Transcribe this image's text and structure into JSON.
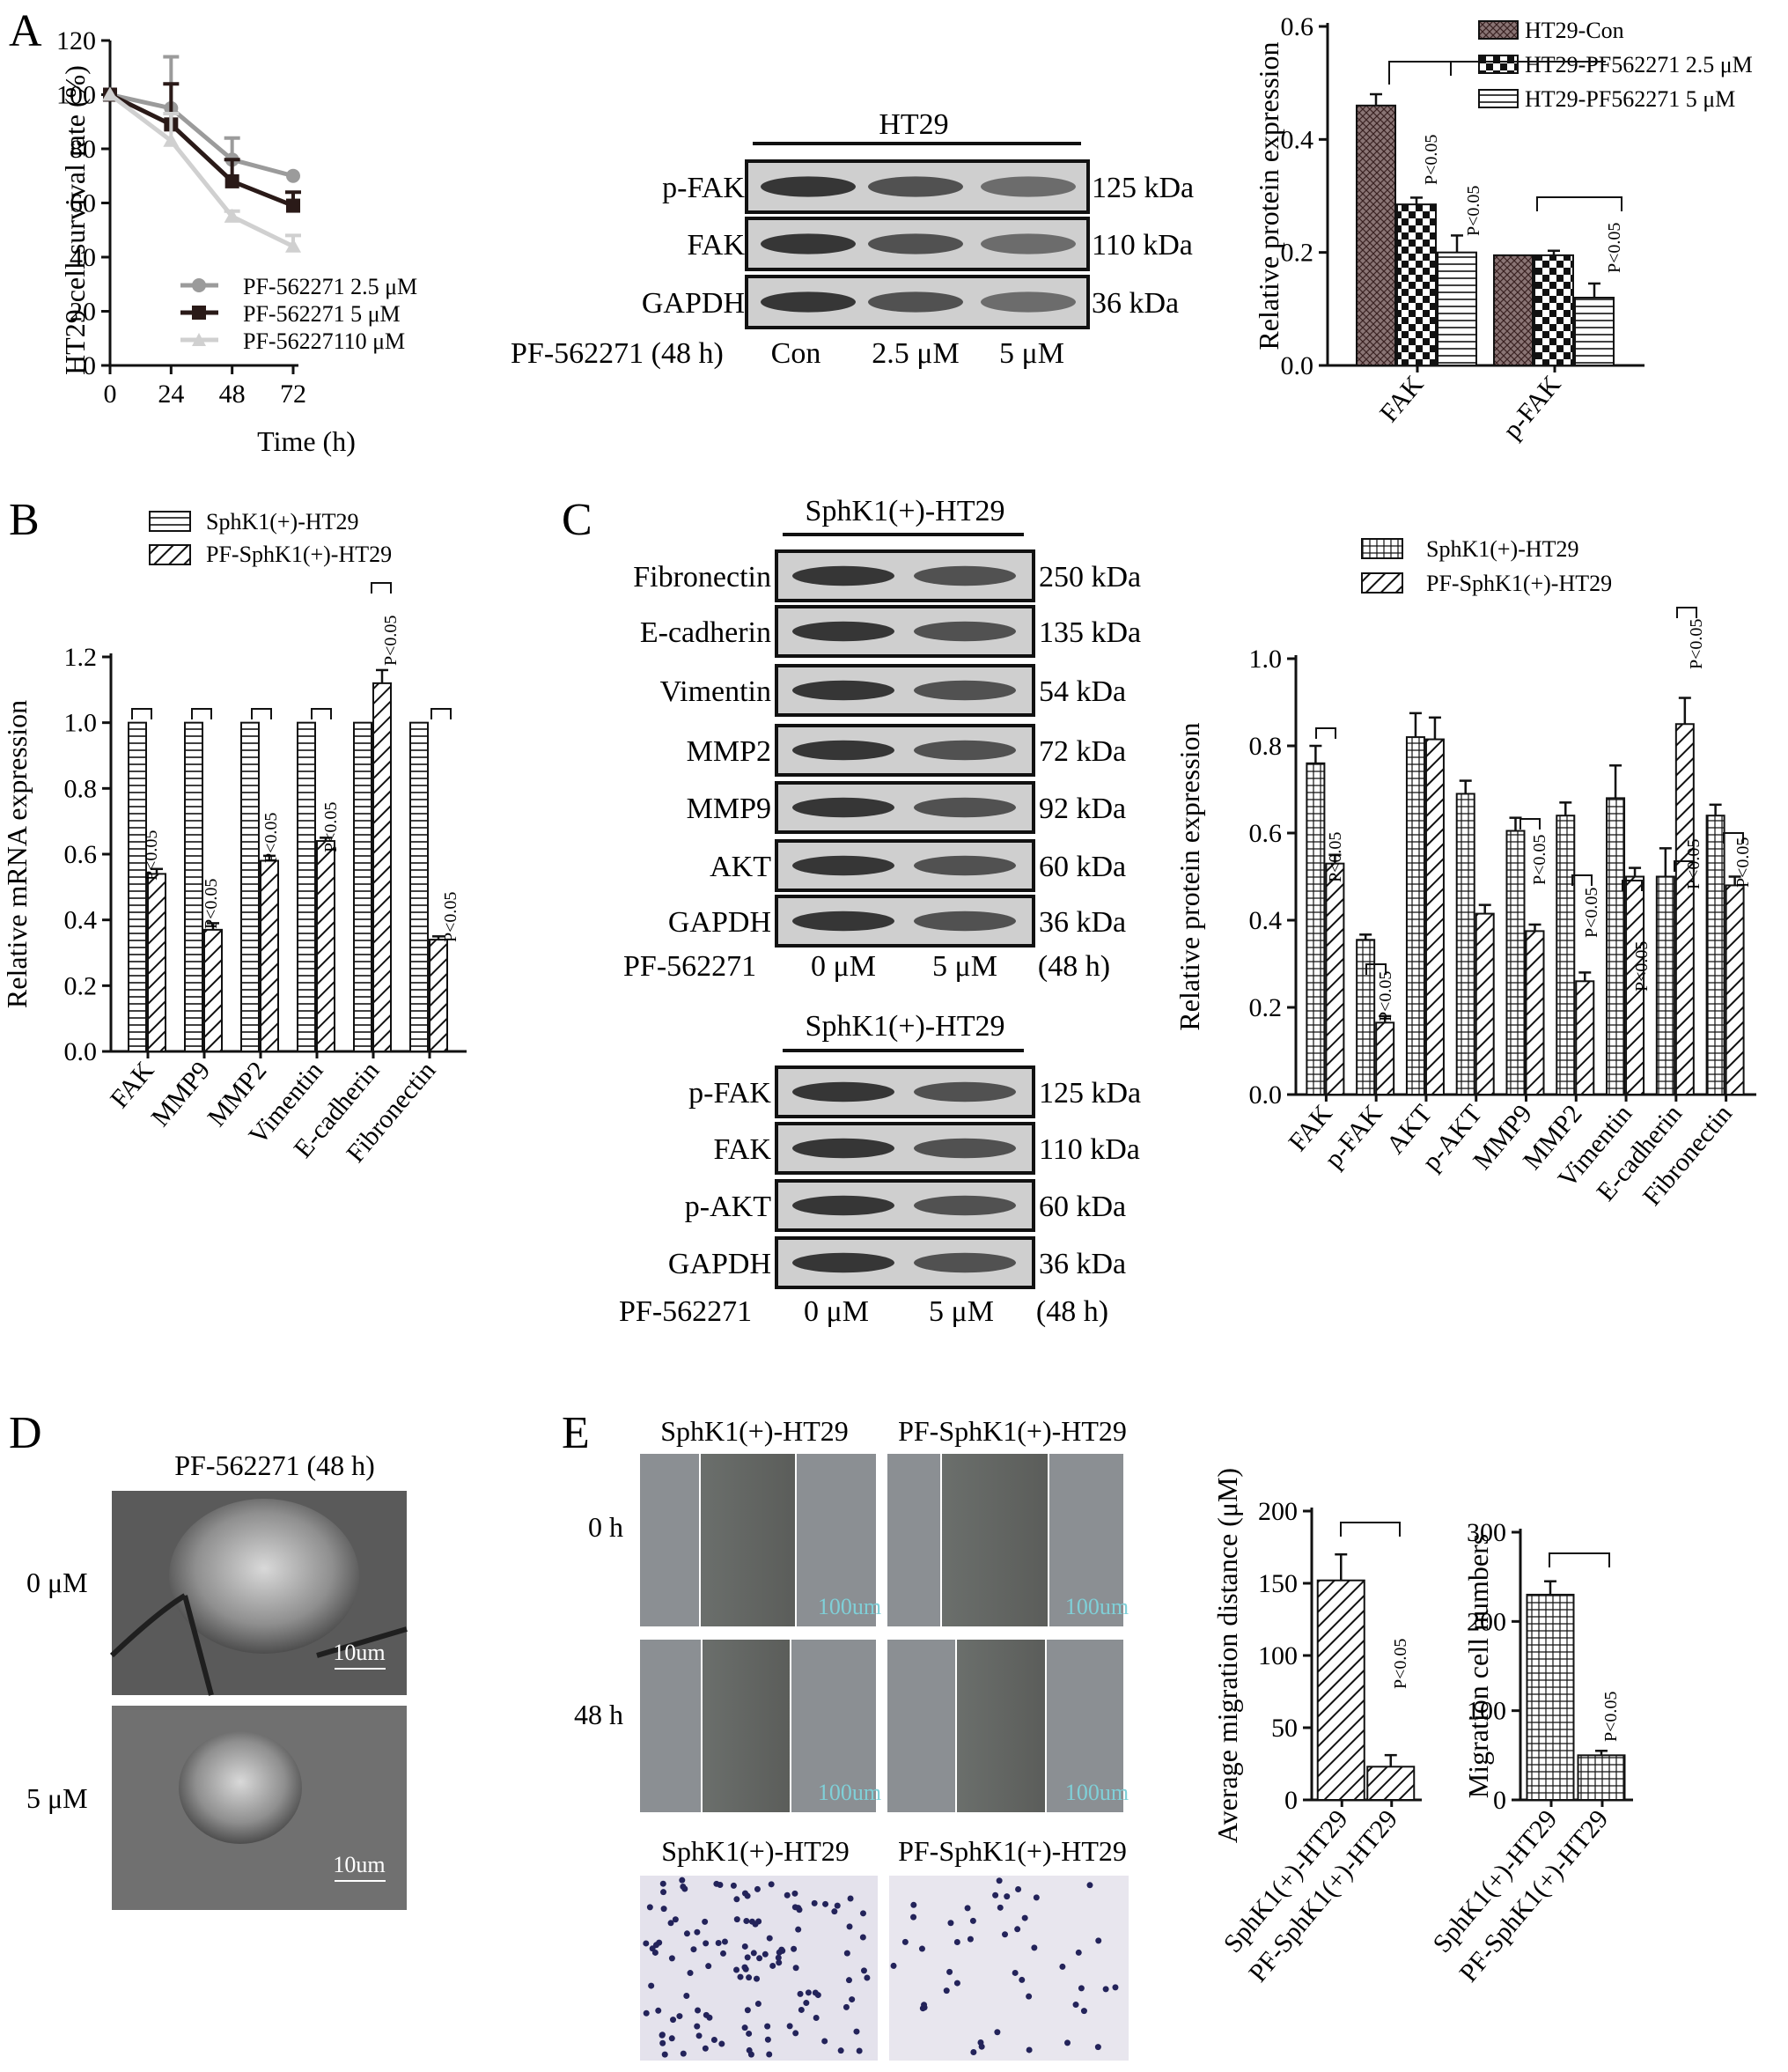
{
  "panels": {
    "A": "A",
    "B": "B",
    "C": "C",
    "D": "D",
    "E": "E"
  },
  "colors": {
    "black": "#111111",
    "dark": "#2a1a18",
    "grey": "#9b9b9b",
    "light": "#d0d0d0",
    "blotbg": "#c9c9c9"
  },
  "chart_data": [
    {
      "id": "A-line",
      "type": "line",
      "ylabel": "HT29 cell survival rate (%)",
      "xlabel": "Time (h)",
      "x": [
        0,
        24,
        48,
        72
      ],
      "xlim": [
        0,
        72
      ],
      "ylim": [
        0,
        120
      ],
      "yticks": [
        0,
        20,
        40,
        60,
        80,
        100,
        120
      ],
      "series": [
        {
          "name": "PF-562271 2.5 μM",
          "values": [
            100,
            95,
            76,
            70
          ],
          "errors": [
            0,
            19,
            8,
            0
          ],
          "color": "#9b9b9b",
          "marker": "circle"
        },
        {
          "name": "PF-562271 5 μM",
          "values": [
            100,
            89,
            68,
            59
          ],
          "errors": [
            0,
            15,
            8,
            5
          ],
          "color": "#2a1a18",
          "marker": "square"
        },
        {
          "name": "PF-56227110 μM",
          "values": [
            100,
            83,
            55,
            44
          ],
          "errors": [
            0,
            10,
            2,
            4
          ],
          "color": "#d0d0d0",
          "marker": "triangle"
        }
      ]
    },
    {
      "id": "A-bar",
      "type": "bar",
      "ylabel": "Relative protein expression",
      "categories": [
        "FAK",
        "p-FAK"
      ],
      "ylim": [
        0,
        0.6
      ],
      "yticks": [
        "0.0",
        "0.2",
        "0.4",
        "0.6"
      ],
      "series": [
        {
          "name": "HT29-Con",
          "values": [
            0.46,
            0.195
          ],
          "errors": [
            0.02,
            0
          ]
        },
        {
          "name": "HT29-PF562271 2.5 μM",
          "values": [
            0.285,
            0.195
          ],
          "errors": [
            0.012,
            0.008
          ]
        },
        {
          "name": "HT29-PF562271 5 μM",
          "values": [
            0.2,
            0.12
          ],
          "errors": [
            0.03,
            0.025
          ]
        }
      ],
      "annotations": [
        "P<0.05",
        "P<0.05",
        "P<0.05"
      ]
    },
    {
      "id": "B-bar",
      "type": "bar",
      "ylabel": "Relative  mRNA expression",
      "categories": [
        "FAK",
        "MMP9",
        "MMP2",
        "Vimentin",
        "E-cadherin",
        "Fibronectin"
      ],
      "ylim": [
        0,
        1.2
      ],
      "yticks": [
        "0.0",
        "0.2",
        "0.4",
        "0.6",
        "0.8",
        "1.0",
        "1.2"
      ],
      "series": [
        {
          "name": "SphK1(+)-HT29",
          "values": [
            1.0,
            1.0,
            1.0,
            1.0,
            1.0,
            1.0
          ],
          "errors": [
            0,
            0,
            0,
            0,
            0,
            0
          ]
        },
        {
          "name": "PF-SphK1(+)-HT29",
          "values": [
            0.54,
            0.37,
            0.58,
            0.64,
            1.12,
            0.34
          ],
          "errors": [
            0.015,
            0.02,
            0.015,
            0.01,
            0.04,
            0.01
          ]
        }
      ],
      "annotations": [
        "P<0.05",
        "P<0.05",
        "P<0.05",
        "P<0.05",
        "P<0.05",
        "P<0.05"
      ]
    },
    {
      "id": "C-bar",
      "type": "bar",
      "ylabel": "Relative protein expression",
      "categories": [
        "FAK",
        "p-FAK",
        "AKT",
        "p-AKT",
        "MMP9",
        "MMP2",
        "Vimentin",
        "E-cadherin",
        "Fibronectin"
      ],
      "ylim": [
        0,
        1.0
      ],
      "yticks": [
        "0.0",
        "0.2",
        "0.4",
        "0.6",
        "0.8",
        "1.0"
      ],
      "series": [
        {
          "name": "SphK1(+)-HT29",
          "values": [
            0.76,
            0.355,
            0.82,
            0.69,
            0.605,
            0.64,
            0.68,
            0.5,
            0.64
          ],
          "errors": [
            0.04,
            0.012,
            0.055,
            0.03,
            0.03,
            0.03,
            0.075,
            0.065,
            0.025
          ]
        },
        {
          "name": "PF-SphK1(+)-HT29",
          "values": [
            0.53,
            0.165,
            0.815,
            0.415,
            0.375,
            0.26,
            0.5,
            0.85,
            0.48
          ],
          "errors": [
            0.02,
            0.015,
            0.05,
            0.02,
            0.015,
            0.02,
            0.02,
            0.06,
            0.02
          ]
        }
      ],
      "annotations": [
        "P<0.05",
        "P<0.05",
        "P<0.05",
        "P<0.05",
        "P<0.05",
        "P<0.05",
        "P<0.05",
        "P<0.05"
      ]
    },
    {
      "id": "E-bar1",
      "type": "bar",
      "ylabel": "Average migration distance (μM)",
      "categories": [
        "SphK1(+)-HT29",
        "PF-SphK1(+)-HT29"
      ],
      "ylim": [
        0,
        200
      ],
      "yticks": [
        "0",
        "50",
        "100",
        "150",
        "200"
      ],
      "values": [
        152,
        23
      ],
      "errors": [
        18,
        8
      ],
      "annotation": "P<0.05"
    },
    {
      "id": "E-bar2",
      "type": "bar",
      "ylabel": "Migration cell numbers",
      "categories": [
        "SphK1(+)-HT29",
        "PF-SphK1(+)-HT29"
      ],
      "ylim": [
        0,
        300
      ],
      "yticks": [
        "0",
        "100",
        "200",
        "300"
      ],
      "values": [
        230,
        50
      ],
      "errors": [
        15,
        5
      ],
      "annotation": "P<0.05"
    }
  ],
  "blotA": {
    "title": "HT29",
    "rows": [
      {
        "label": "p-FAK",
        "kda": "125 kDa"
      },
      {
        "label": "FAK",
        "kda": "110 kDa"
      },
      {
        "label": "GAPDH",
        "kda": "36 kDa"
      }
    ],
    "treatment": "PF-562271 (48 h)",
    "lanes": [
      "Con",
      "2.5 μM",
      "5 μM"
    ]
  },
  "blotC1": {
    "title": "SphK1(+)-HT29",
    "rows": [
      {
        "label": "Fibronectin",
        "kda": "250  kDa"
      },
      {
        "label": "E-cadherin",
        "kda": "135  kDa"
      },
      {
        "label": "Vimentin",
        "kda": "54  kDa"
      },
      {
        "label": "MMP2",
        "kda": "72  kDa"
      },
      {
        "label": "MMP9",
        "kda": "92  kDa"
      },
      {
        "label": "AKT",
        "kda": "60  kDa"
      },
      {
        "label": "GAPDH",
        "kda": "36  kDa"
      }
    ],
    "treatment": "PF-562271",
    "lanes": [
      "0 μM",
      "5 μM"
    ],
    "time": "(48 h)"
  },
  "blotC2": {
    "title": "SphK1(+)-HT29",
    "rows": [
      {
        "label": "p-FAK",
        "kda": "125  kDa"
      },
      {
        "label": "FAK",
        "kda": "110  kDa"
      },
      {
        "label": "p-AKT",
        "kda": "60  kDa"
      },
      {
        "label": "GAPDH",
        "kda": "36  kDa"
      }
    ],
    "treatment": "PF-562271",
    "lanes": [
      "0 μM",
      "5 μM"
    ],
    "time": "(48 h)"
  },
  "panelD": {
    "title": "PF-562271 (48 h)",
    "rows": [
      "0 μM",
      "5 μM"
    ],
    "scale": "10um"
  },
  "panelE": {
    "cols": [
      "SphK1(+)-HT29",
      "PF-SphK1(+)-HT29"
    ],
    "rows": [
      "0 h",
      "48 h"
    ],
    "scale": "100um",
    "cols2": [
      "SphK1(+)-HT29",
      "PF-SphK1(+)-HT29"
    ]
  }
}
